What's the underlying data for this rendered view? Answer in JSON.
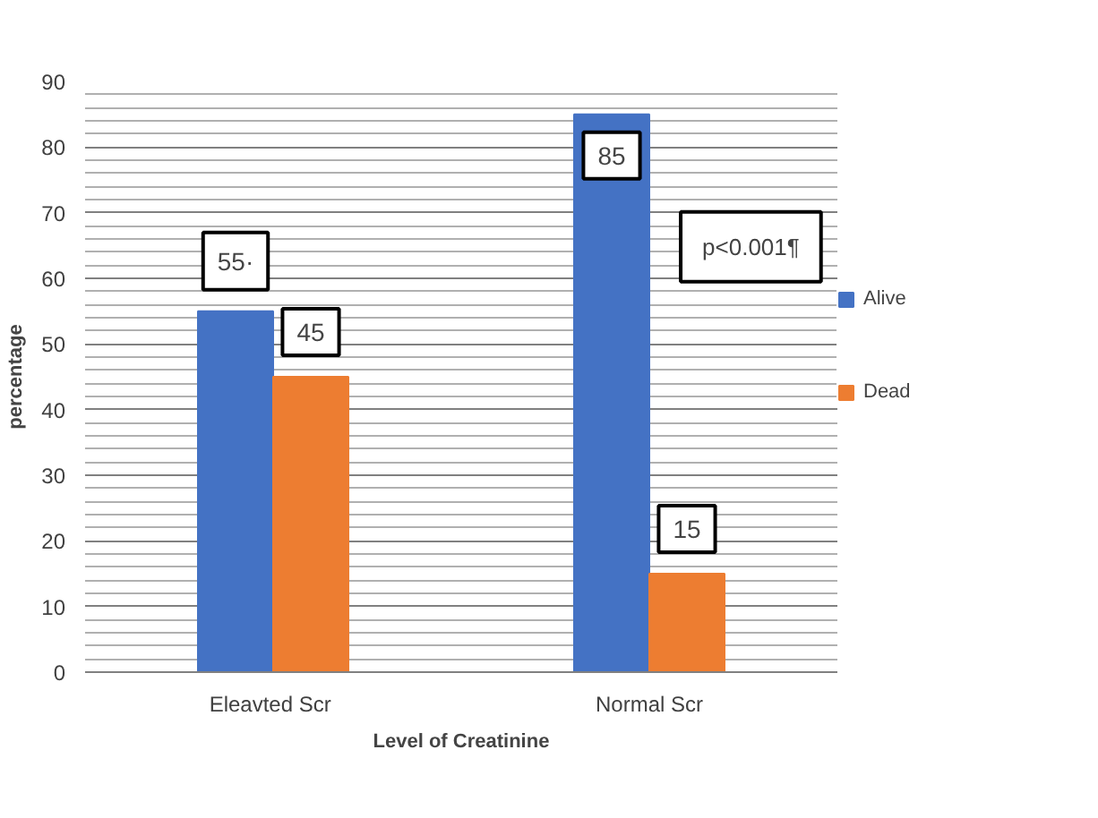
{
  "chart_data": {
    "type": "bar",
    "categories": [
      "Eleavted  Scr",
      "Normal Scr"
    ],
    "series": [
      {
        "name": "Alive",
        "color": "#4472c4",
        "values": [
          55,
          85
        ],
        "value_labels": [
          "55·",
          "85"
        ]
      },
      {
        "name": "Dead",
        "color": "#ed7d31",
        "values": [
          45,
          15
        ],
        "value_labels": [
          "45",
          "15"
        ]
      }
    ],
    "xlabel": "Level of Creatinine",
    "ylabel": "percentage",
    "ylim": [
      0,
      90
    ],
    "yticks": [
      0,
      10,
      20,
      30,
      40,
      50,
      60,
      70,
      80,
      90
    ],
    "annotations": [
      "p<0.001¶"
    ],
    "grid": "y",
    "legend": "right"
  }
}
